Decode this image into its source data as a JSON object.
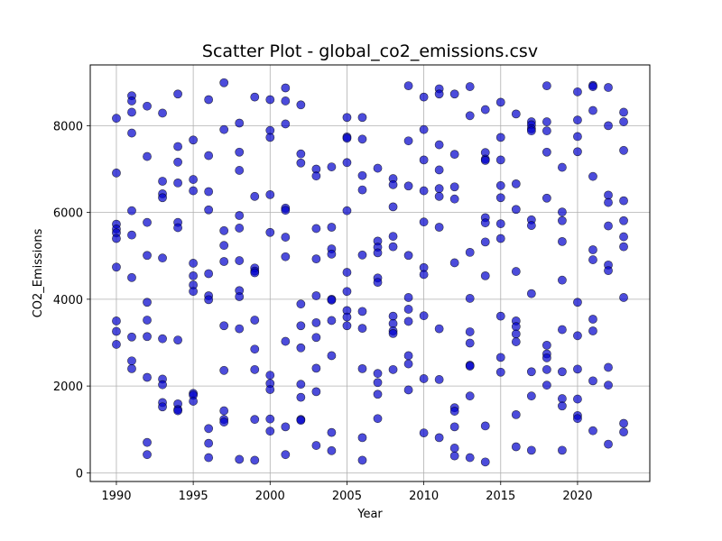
{
  "chart_data": {
    "type": "scatter",
    "title": "Scatter Plot - global_co2_emissions.csv",
    "xlabel": "Year",
    "ylabel": "CO2_Emissions",
    "xlim": [
      1988.3,
      2024.7
    ],
    "ylim": [
      -200,
      9400
    ],
    "xticks": [
      1990,
      1995,
      2000,
      2005,
      2010,
      2015,
      2020
    ],
    "yticks": [
      0,
      2000,
      4000,
      6000,
      8000
    ],
    "grid": true,
    "legend": "none",
    "marker_color": "#0000cc",
    "marker_edge_color": "#000000",
    "points": [
      [
        1990,
        8170
      ],
      [
        1990,
        6910
      ],
      [
        1990,
        5730
      ],
      [
        1990,
        5620
      ],
      [
        1990,
        5530
      ],
      [
        1990,
        5400
      ],
      [
        1990,
        4740
      ],
      [
        1990,
        3500
      ],
      [
        1990,
        3260
      ],
      [
        1990,
        2960
      ],
      [
        1991,
        8690
      ],
      [
        1991,
        8570
      ],
      [
        1991,
        8310
      ],
      [
        1991,
        7830
      ],
      [
        1991,
        6040
      ],
      [
        1991,
        5480
      ],
      [
        1991,
        4500
      ],
      [
        1991,
        3130
      ],
      [
        1991,
        2580
      ],
      [
        1991,
        2400
      ],
      [
        1992,
        8450
      ],
      [
        1992,
        7290
      ],
      [
        1992,
        5770
      ],
      [
        1992,
        5010
      ],
      [
        1992,
        3930
      ],
      [
        1992,
        3520
      ],
      [
        1992,
        3140
      ],
      [
        1992,
        2200
      ],
      [
        1992,
        700
      ],
      [
        1992,
        420
      ],
      [
        1993,
        8290
      ],
      [
        1993,
        6720
      ],
      [
        1993,
        6430
      ],
      [
        1993,
        6340
      ],
      [
        1993,
        4950
      ],
      [
        1993,
        3090
      ],
      [
        1993,
        2160
      ],
      [
        1993,
        2030
      ],
      [
        1993,
        1620
      ],
      [
        1993,
        1520
      ],
      [
        1994,
        8730
      ],
      [
        1994,
        7520
      ],
      [
        1994,
        7160
      ],
      [
        1994,
        6680
      ],
      [
        1994,
        5770
      ],
      [
        1994,
        5650
      ],
      [
        1994,
        3060
      ],
      [
        1994,
        1590
      ],
      [
        1994,
        1460
      ],
      [
        1994,
        1430
      ],
      [
        1995,
        7670
      ],
      [
        1995,
        6760
      ],
      [
        1995,
        6500
      ],
      [
        1995,
        4830
      ],
      [
        1995,
        4540
      ],
      [
        1995,
        4330
      ],
      [
        1995,
        4180
      ],
      [
        1995,
        1830
      ],
      [
        1995,
        1790
      ],
      [
        1995,
        1650
      ],
      [
        1996,
        8600
      ],
      [
        1996,
        7310
      ],
      [
        1996,
        6480
      ],
      [
        1996,
        6060
      ],
      [
        1996,
        4590
      ],
      [
        1996,
        4080
      ],
      [
        1996,
        3990
      ],
      [
        1996,
        1020
      ],
      [
        1996,
        680
      ],
      [
        1996,
        350
      ],
      [
        1997,
        8990
      ],
      [
        1997,
        7910
      ],
      [
        1997,
        5580
      ],
      [
        1997,
        5240
      ],
      [
        1997,
        4870
      ],
      [
        1997,
        3390
      ],
      [
        1997,
        2360
      ],
      [
        1997,
        1430
      ],
      [
        1997,
        1230
      ],
      [
        1997,
        1170
      ],
      [
        1998,
        8060
      ],
      [
        1998,
        7390
      ],
      [
        1998,
        6970
      ],
      [
        1998,
        5930
      ],
      [
        1998,
        5640
      ],
      [
        1998,
        4890
      ],
      [
        1998,
        4200
      ],
      [
        1998,
        4060
      ],
      [
        1998,
        3320
      ],
      [
        1998,
        310
      ],
      [
        1999,
        8660
      ],
      [
        1999,
        6370
      ],
      [
        1999,
        4720
      ],
      [
        1999,
        4650
      ],
      [
        1999,
        4610
      ],
      [
        1999,
        3520
      ],
      [
        1999,
        2850
      ],
      [
        1999,
        2380
      ],
      [
        1999,
        1230
      ],
      [
        1999,
        290
      ],
      [
        2000,
        8600
      ],
      [
        2000,
        7890
      ],
      [
        2000,
        7730
      ],
      [
        2000,
        6410
      ],
      [
        2000,
        5540
      ],
      [
        2000,
        2250
      ],
      [
        2000,
        2060
      ],
      [
        2000,
        1920
      ],
      [
        2000,
        1240
      ],
      [
        2000,
        960
      ],
      [
        2001,
        8870
      ],
      [
        2001,
        8570
      ],
      [
        2001,
        8040
      ],
      [
        2001,
        6100
      ],
      [
        2001,
        6050
      ],
      [
        2001,
        5430
      ],
      [
        2001,
        4980
      ],
      [
        2001,
        3030
      ],
      [
        2001,
        1060
      ],
      [
        2001,
        420
      ],
      [
        2002,
        8480
      ],
      [
        2002,
        7350
      ],
      [
        2002,
        7140
      ],
      [
        2002,
        3890
      ],
      [
        2002,
        3390
      ],
      [
        2002,
        2880
      ],
      [
        2002,
        2040
      ],
      [
        2002,
        1740
      ],
      [
        2002,
        1230
      ],
      [
        2002,
        1210
      ],
      [
        2003,
        7000
      ],
      [
        2003,
        6840
      ],
      [
        2003,
        5630
      ],
      [
        2003,
        4930
      ],
      [
        2003,
        4080
      ],
      [
        2003,
        3460
      ],
      [
        2003,
        3120
      ],
      [
        2003,
        2410
      ],
      [
        2003,
        1870
      ],
      [
        2003,
        630
      ],
      [
        2004,
        7050
      ],
      [
        2004,
        5660
      ],
      [
        2004,
        5160
      ],
      [
        2004,
        5040
      ],
      [
        2004,
        4000
      ],
      [
        2004,
        3980
      ],
      [
        2004,
        3510
      ],
      [
        2004,
        2700
      ],
      [
        2004,
        930
      ],
      [
        2004,
        510
      ],
      [
        2005,
        8190
      ],
      [
        2005,
        7740
      ],
      [
        2005,
        7710
      ],
      [
        2005,
        7150
      ],
      [
        2005,
        6040
      ],
      [
        2005,
        4620
      ],
      [
        2005,
        4180
      ],
      [
        2005,
        3740
      ],
      [
        2005,
        3590
      ],
      [
        2005,
        3390
      ],
      [
        2006,
        8190
      ],
      [
        2006,
        7690
      ],
      [
        2006,
        6850
      ],
      [
        2006,
        6520
      ],
      [
        2006,
        5020
      ],
      [
        2006,
        3720
      ],
      [
        2006,
        3330
      ],
      [
        2006,
        2400
      ],
      [
        2006,
        810
      ],
      [
        2006,
        290
      ],
      [
        2007,
        7020
      ],
      [
        2007,
        5340
      ],
      [
        2007,
        5200
      ],
      [
        2007,
        5070
      ],
      [
        2007,
        4490
      ],
      [
        2007,
        4390
      ],
      [
        2007,
        2290
      ],
      [
        2007,
        2080
      ],
      [
        2007,
        1810
      ],
      [
        2007,
        1250
      ],
      [
        2008,
        6780
      ],
      [
        2008,
        6640
      ],
      [
        2008,
        6130
      ],
      [
        2008,
        5450
      ],
      [
        2008,
        5210
      ],
      [
        2008,
        3610
      ],
      [
        2008,
        3440
      ],
      [
        2008,
        3270
      ],
      [
        2008,
        3210
      ],
      [
        2008,
        2380
      ],
      [
        2009,
        8920
      ],
      [
        2009,
        7650
      ],
      [
        2009,
        6610
      ],
      [
        2009,
        5010
      ],
      [
        2009,
        4040
      ],
      [
        2009,
        3770
      ],
      [
        2009,
        3490
      ],
      [
        2009,
        2700
      ],
      [
        2009,
        2510
      ],
      [
        2009,
        1910
      ],
      [
        2010,
        8660
      ],
      [
        2010,
        7910
      ],
      [
        2010,
        7210
      ],
      [
        2010,
        6500
      ],
      [
        2010,
        5780
      ],
      [
        2010,
        4730
      ],
      [
        2010,
        4570
      ],
      [
        2010,
        3620
      ],
      [
        2010,
        2170
      ],
      [
        2010,
        920
      ],
      [
        2011,
        8850
      ],
      [
        2011,
        8730
      ],
      [
        2011,
        7560
      ],
      [
        2011,
        6980
      ],
      [
        2011,
        6550
      ],
      [
        2011,
        6370
      ],
      [
        2011,
        5660
      ],
      [
        2011,
        3320
      ],
      [
        2011,
        2150
      ],
      [
        2011,
        810
      ],
      [
        2012,
        8730
      ],
      [
        2012,
        7340
      ],
      [
        2012,
        6590
      ],
      [
        2012,
        6310
      ],
      [
        2012,
        4840
      ],
      [
        2012,
        1500
      ],
      [
        2012,
        1420
      ],
      [
        2012,
        1060
      ],
      [
        2012,
        570
      ],
      [
        2012,
        390
      ],
      [
        2013,
        8900
      ],
      [
        2013,
        8230
      ],
      [
        2013,
        5080
      ],
      [
        2013,
        4020
      ],
      [
        2013,
        3250
      ],
      [
        2013,
        2990
      ],
      [
        2013,
        2480
      ],
      [
        2013,
        2460
      ],
      [
        2013,
        1770
      ],
      [
        2013,
        350
      ],
      [
        2014,
        8370
      ],
      [
        2014,
        7380
      ],
      [
        2014,
        7230
      ],
      [
        2014,
        7200
      ],
      [
        2014,
        5880
      ],
      [
        2014,
        5760
      ],
      [
        2014,
        5320
      ],
      [
        2014,
        4540
      ],
      [
        2014,
        1080
      ],
      [
        2014,
        250
      ],
      [
        2015,
        8540
      ],
      [
        2015,
        7730
      ],
      [
        2015,
        7210
      ],
      [
        2015,
        6620
      ],
      [
        2015,
        6340
      ],
      [
        2015,
        5740
      ],
      [
        2015,
        5400
      ],
      [
        2015,
        3610
      ],
      [
        2015,
        2660
      ],
      [
        2015,
        2320
      ],
      [
        2016,
        8270
      ],
      [
        2016,
        6660
      ],
      [
        2016,
        6070
      ],
      [
        2016,
        4640
      ],
      [
        2016,
        3500
      ],
      [
        2016,
        3370
      ],
      [
        2016,
        3200
      ],
      [
        2016,
        3020
      ],
      [
        2016,
        1340
      ],
      [
        2016,
        600
      ],
      [
        2017,
        8090
      ],
      [
        2017,
        8020
      ],
      [
        2017,
        7930
      ],
      [
        2017,
        7880
      ],
      [
        2017,
        5830
      ],
      [
        2017,
        5700
      ],
      [
        2017,
        4130
      ],
      [
        2017,
        2330
      ],
      [
        2017,
        1770
      ],
      [
        2017,
        520
      ],
      [
        2018,
        8920
      ],
      [
        2018,
        8090
      ],
      [
        2018,
        7880
      ],
      [
        2018,
        7390
      ],
      [
        2018,
        6330
      ],
      [
        2018,
        2940
      ],
      [
        2018,
        2740
      ],
      [
        2018,
        2650
      ],
      [
        2018,
        2380
      ],
      [
        2018,
        2020
      ],
      [
        2019,
        7040
      ],
      [
        2019,
        6010
      ],
      [
        2019,
        5810
      ],
      [
        2019,
        5330
      ],
      [
        2019,
        4440
      ],
      [
        2019,
        3300
      ],
      [
        2019,
        2330
      ],
      [
        2019,
        1710
      ],
      [
        2019,
        1540
      ],
      [
        2019,
        520
      ],
      [
        2020,
        8780
      ],
      [
        2020,
        8130
      ],
      [
        2020,
        7750
      ],
      [
        2020,
        7400
      ],
      [
        2020,
        3930
      ],
      [
        2020,
        3160
      ],
      [
        2020,
        2390
      ],
      [
        2020,
        1700
      ],
      [
        2020,
        1320
      ],
      [
        2020,
        1250
      ],
      [
        2021,
        8930
      ],
      [
        2021,
        8900
      ],
      [
        2021,
        8350
      ],
      [
        2021,
        6830
      ],
      [
        2021,
        5140
      ],
      [
        2021,
        4910
      ],
      [
        2021,
        3540
      ],
      [
        2021,
        3270
      ],
      [
        2021,
        2120
      ],
      [
        2021,
        970
      ],
      [
        2022,
        8880
      ],
      [
        2022,
        8000
      ],
      [
        2022,
        6400
      ],
      [
        2022,
        6230
      ],
      [
        2022,
        5690
      ],
      [
        2022,
        4790
      ],
      [
        2022,
        4660
      ],
      [
        2022,
        2430
      ],
      [
        2022,
        2020
      ],
      [
        2022,
        660
      ],
      [
        2023,
        8310
      ],
      [
        2023,
        8090
      ],
      [
        2023,
        7430
      ],
      [
        2023,
        6270
      ],
      [
        2023,
        5810
      ],
      [
        2023,
        5440
      ],
      [
        2023,
        5210
      ],
      [
        2023,
        4040
      ],
      [
        2023,
        1140
      ],
      [
        2023,
        940
      ]
    ]
  }
}
